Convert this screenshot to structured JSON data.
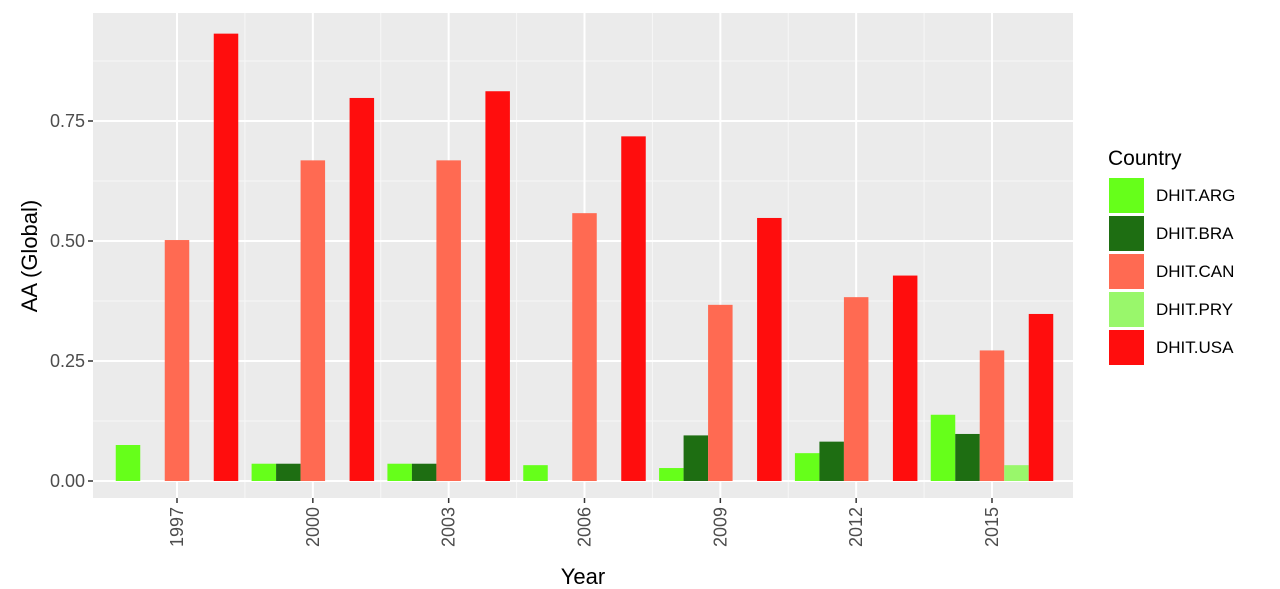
{
  "chart_data": {
    "type": "bar",
    "xlabel": "Year",
    "ylabel": "AA (Global)",
    "ylim": [
      0,
      1.0
    ],
    "yticks": [
      0.0,
      0.25,
      0.5,
      0.75
    ],
    "ytick_labels": [
      "0.00",
      "0.25",
      "0.50",
      "0.75"
    ],
    "categories": [
      "1997",
      "2000",
      "2003",
      "2006",
      "2009",
      "2012",
      "2015"
    ],
    "legend": {
      "title": "Country",
      "position": "right"
    },
    "grid": true,
    "series": [
      {
        "name": "DHIT.ARG",
        "color": "#66ff1a",
        "values": [
          0.075,
          0.036,
          0.036,
          0.033,
          0.027,
          0.058,
          0.138
        ]
      },
      {
        "name": "DHIT.BRA",
        "color": "#1e6e12",
        "values": [
          null,
          0.036,
          0.036,
          null,
          0.095,
          0.082,
          0.098
        ]
      },
      {
        "name": "DHIT.CAN",
        "color": "#ff6a52",
        "values": [
          0.502,
          0.668,
          0.668,
          0.558,
          0.367,
          0.383,
          0.272
        ]
      },
      {
        "name": "DHIT.PRY",
        "color": "#99f76b",
        "values": [
          null,
          null,
          null,
          null,
          null,
          null,
          0.033
        ]
      },
      {
        "name": "DHIT.USA",
        "color": "#ff0d0d",
        "values": [
          0.932,
          0.798,
          0.812,
          0.718,
          0.548,
          0.428,
          0.348
        ]
      }
    ]
  }
}
